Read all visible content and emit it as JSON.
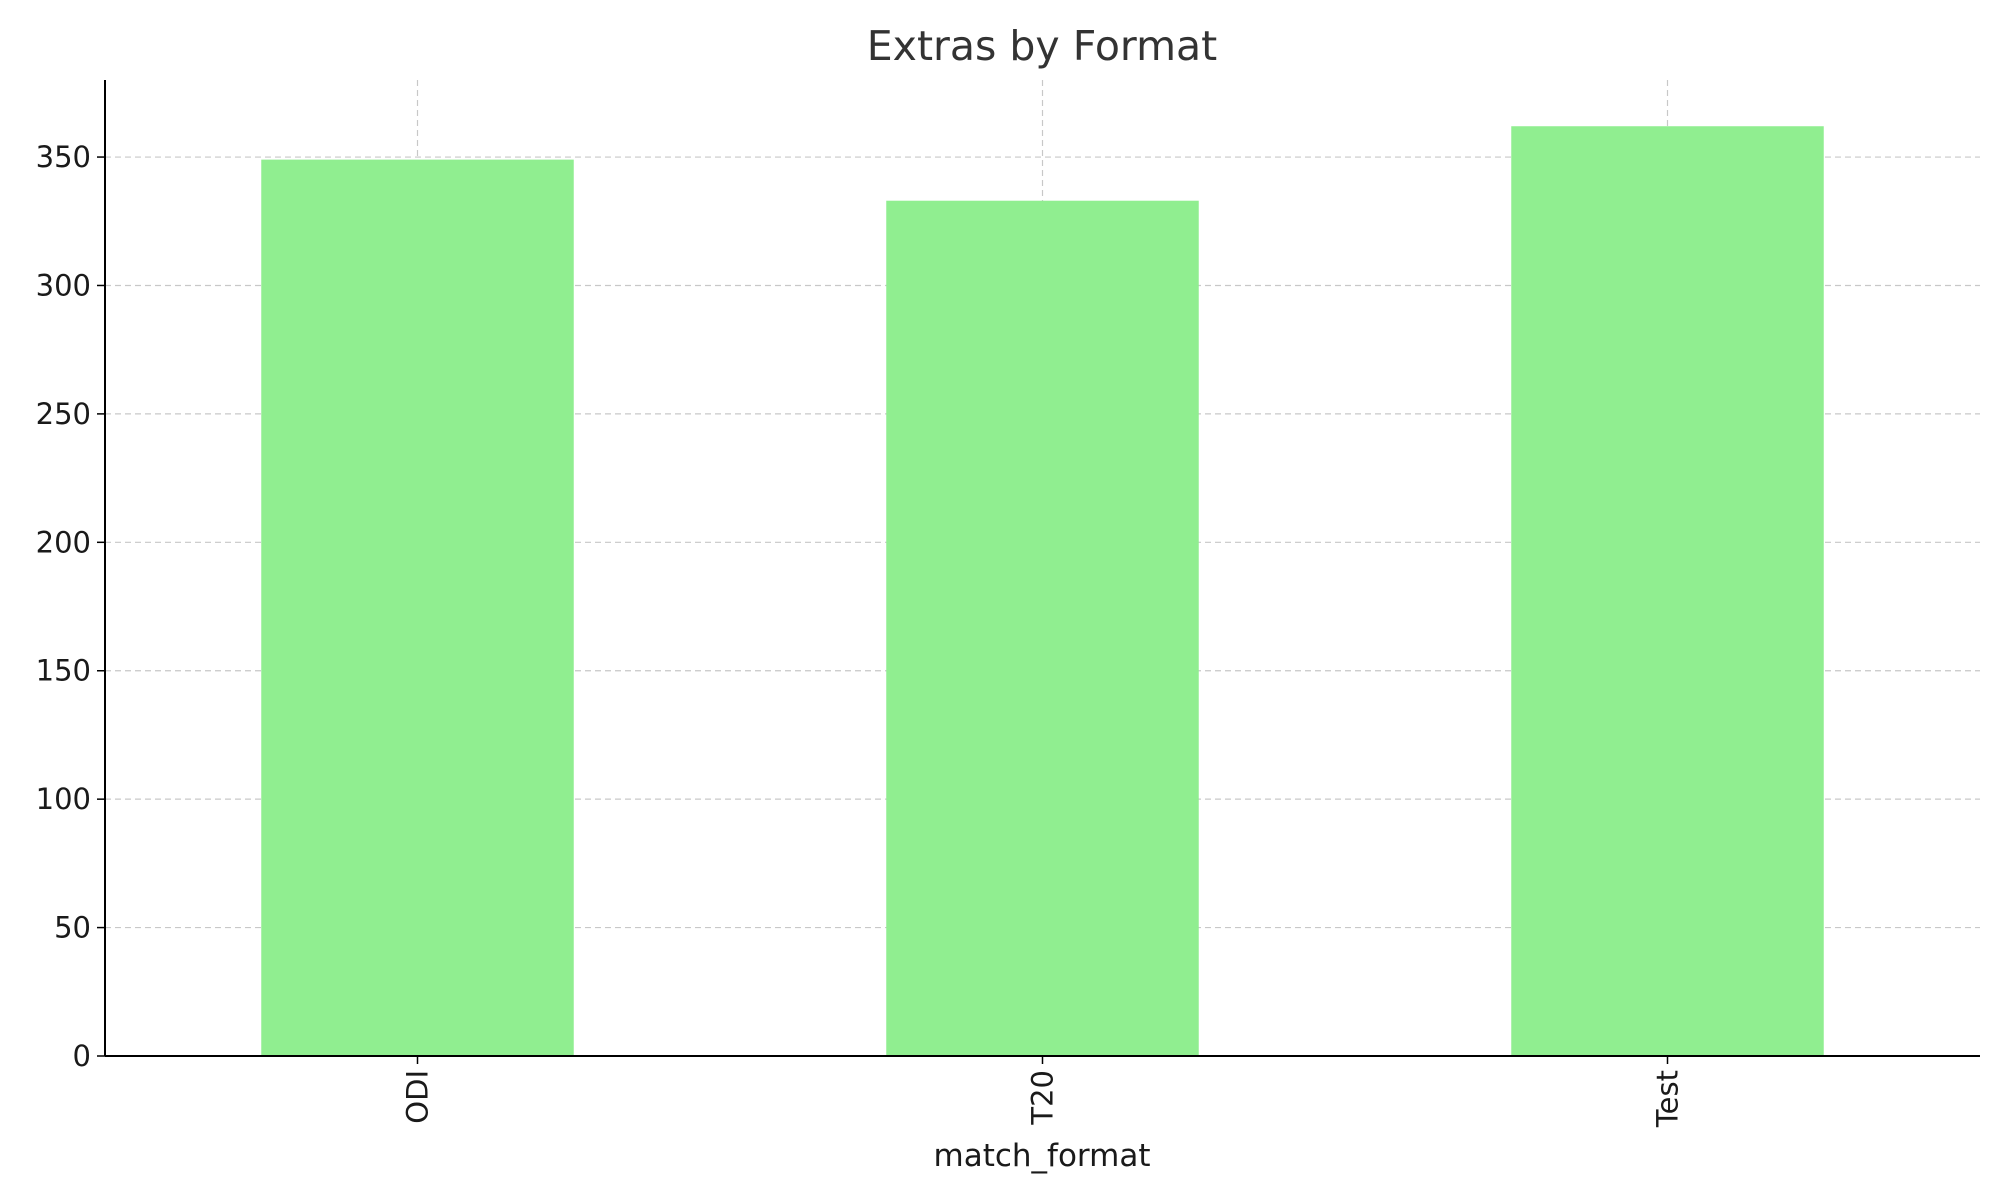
{
  "chart_data": {
    "type": "bar",
    "title": "Extras by Format",
    "xlabel": "match_format",
    "ylabel": "",
    "categories": [
      "ODI",
      "T20",
      "Test"
    ],
    "values": [
      349,
      333,
      362
    ],
    "ylim": [
      0,
      380
    ],
    "yticks": [
      0,
      50,
      100,
      150,
      200,
      250,
      300,
      350
    ],
    "grid": true,
    "legend": "none",
    "bar_color": "#90ee90",
    "grid_color": "#c8c8c8",
    "axis_color": "#000000",
    "text_color": "#333333",
    "tick_label_rotation": "vertical"
  }
}
